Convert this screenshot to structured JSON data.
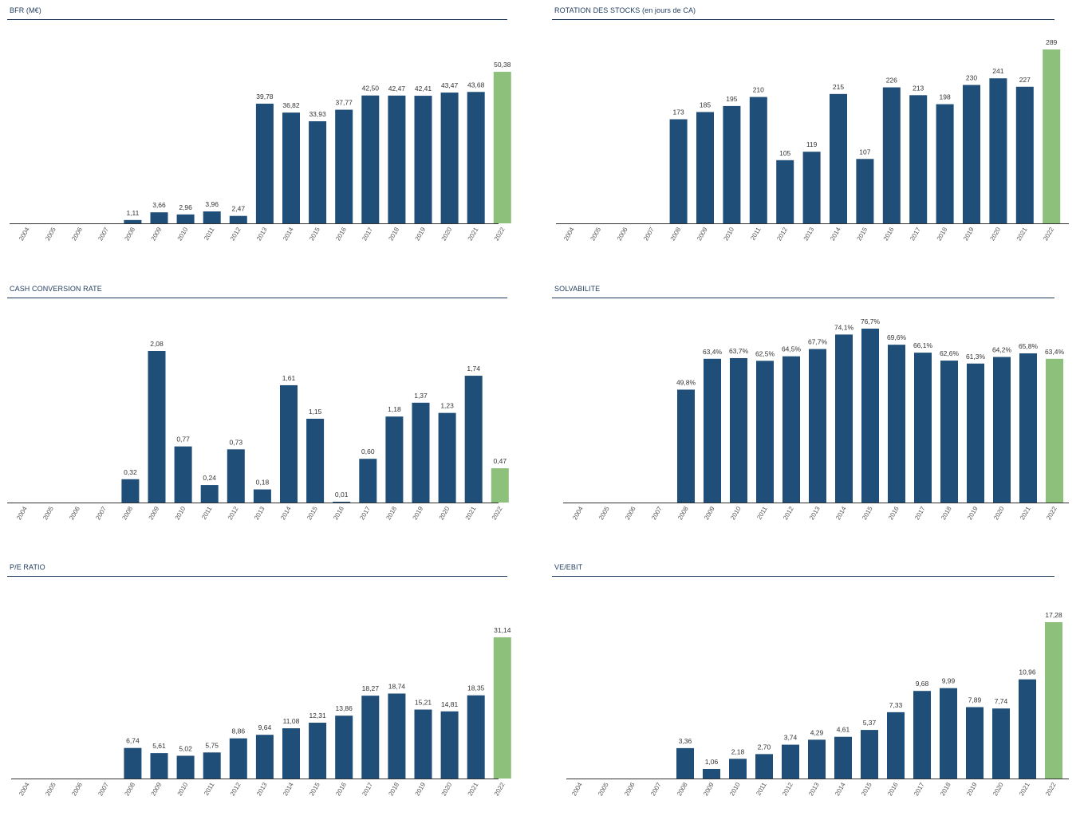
{
  "colors": {
    "bar": "#1f4e79",
    "highlight": "#8dc07a",
    "title": "#1f3a5c",
    "axis": "#333333"
  },
  "chart_data": [
    {
      "type": "bar",
      "title": "BFR (M€)",
      "categories": [
        "2004",
        "2005",
        "2006",
        "2007",
        "2008",
        "2009",
        "2010",
        "2011",
        "2012",
        "2013",
        "2014",
        "2015",
        "2016",
        "2017",
        "2018",
        "2019",
        "2020",
        "2021",
        "2022"
      ],
      "values": [
        null,
        null,
        null,
        null,
        1.11,
        3.66,
        2.96,
        3.96,
        2.47,
        39.78,
        36.82,
        33.93,
        37.77,
        42.5,
        42.47,
        42.41,
        43.47,
        43.68,
        50.38
      ],
      "labels": [
        "",
        "",
        "",
        "",
        "1,11",
        "3,66",
        "2,96",
        "3,96",
        "2,47",
        "39,78",
        "36,82",
        "33,93",
        "37,77",
        "42,50",
        "42,47",
        "42,41",
        "43,47",
        "43,68",
        "50,38"
      ],
      "highlight_index": 18,
      "ylim": [
        0,
        50.38
      ]
    },
    {
      "type": "bar",
      "title": "ROTATION DES STOCKS (en jours de CA)",
      "categories": [
        "2004",
        "2005",
        "2006",
        "2007",
        "2008",
        "2009",
        "2010",
        "2011",
        "2012",
        "2013",
        "2014",
        "2015",
        "2016",
        "2017",
        "2018",
        "2019",
        "2020",
        "2021",
        "2022"
      ],
      "values": [
        null,
        null,
        null,
        null,
        173,
        185,
        195,
        210,
        105,
        119,
        215,
        107,
        226,
        213,
        198,
        230,
        241,
        227,
        289
      ],
      "labels": [
        "",
        "",
        "",
        "",
        "173",
        "185",
        "195",
        "210",
        "105",
        "119",
        "215",
        "107",
        "226",
        "213",
        "198",
        "230",
        "241",
        "227",
        "289"
      ],
      "highlight_index": 18,
      "ylim": [
        0,
        289
      ]
    },
    {
      "type": "bar",
      "title": "CASH CONVERSION RATE",
      "categories": [
        "2004",
        "2005",
        "2006",
        "2007",
        "2008",
        "2009",
        "2010",
        "2011",
        "2012",
        "2013",
        "2014",
        "2015",
        "2016",
        "2017",
        "2018",
        "2019",
        "2020",
        "2021",
        "2022"
      ],
      "values": [
        null,
        null,
        null,
        null,
        0.32,
        2.08,
        0.77,
        0.24,
        0.73,
        0.18,
        1.61,
        1.15,
        0.01,
        0.6,
        1.18,
        1.37,
        1.23,
        1.74,
        0.47
      ],
      "labels": [
        "",
        "",
        "",
        "",
        "0,32",
        "2,08",
        "0,77",
        "0,24",
        "0,73",
        "0,18",
        "1,61",
        "1,15",
        "0,01",
        "0,60",
        "1,18",
        "1,37",
        "1,23",
        "1,74",
        "0,47"
      ],
      "highlight_index": 18,
      "ylim": [
        0,
        2.08
      ]
    },
    {
      "type": "bar",
      "title": "SOLVABILITE",
      "categories": [
        "2004",
        "2005",
        "2006",
        "2007",
        "2008",
        "2009",
        "2010",
        "2011",
        "2012",
        "2013",
        "2014",
        "2015",
        "2016",
        "2017",
        "2018",
        "2019",
        "2020",
        "2021",
        "2022"
      ],
      "values": [
        null,
        null,
        null,
        null,
        49.8,
        63.4,
        63.7,
        62.5,
        64.5,
        67.7,
        74.1,
        76.7,
        69.6,
        66.1,
        62.6,
        61.3,
        64.2,
        65.8,
        63.4
      ],
      "labels": [
        "",
        "",
        "",
        "",
        "49,8%",
        "63,4%",
        "63,7%",
        "62,5%",
        "64,5%",
        "67,7%",
        "74,1%",
        "76,7%",
        "69,6%",
        "66,1%",
        "62,6%",
        "61,3%",
        "64,2%",
        "65,8%",
        "63,4%"
      ],
      "highlight_index": 18,
      "ylim": [
        0,
        76.7
      ]
    },
    {
      "type": "bar",
      "title": "P/E RATIO",
      "categories": [
        "2004",
        "2005",
        "2006",
        "2007",
        "2008",
        "2009",
        "2010",
        "2011",
        "2012",
        "2013",
        "2014",
        "2015",
        "2016",
        "2017",
        "2018",
        "2019",
        "2020",
        "2021",
        "2022"
      ],
      "values": [
        null,
        null,
        null,
        null,
        6.74,
        5.61,
        5.02,
        5.75,
        8.86,
        9.64,
        11.08,
        12.31,
        13.86,
        18.27,
        18.74,
        15.21,
        14.81,
        18.35,
        31.14
      ],
      "labels": [
        "",
        "",
        "",
        "",
        "6,74",
        "5,61",
        "5,02",
        "5,75",
        "8,86",
        "9,64",
        "11,08",
        "12,31",
        "13,86",
        "18,27",
        "18,74",
        "15,21",
        "14,81",
        "18,35",
        "31,14"
      ],
      "highlight_index": 18,
      "ylim": [
        0,
        31.14
      ]
    },
    {
      "type": "bar",
      "title": "VE/EBIT",
      "categories": [
        "2004",
        "2005",
        "2006",
        "2007",
        "2008",
        "2009",
        "2010",
        "2011",
        "2012",
        "2013",
        "2014",
        "2015",
        "2016",
        "2017",
        "2018",
        "2019",
        "2020",
        "2021",
        "2022"
      ],
      "values": [
        null,
        null,
        null,
        null,
        3.36,
        1.06,
        2.18,
        2.7,
        3.74,
        4.29,
        4.61,
        5.37,
        7.33,
        9.68,
        9.99,
        7.89,
        7.74,
        10.96,
        17.28
      ],
      "labels": [
        "",
        "",
        "",
        "",
        "3,36",
        "1,06",
        "2,18",
        "2,70",
        "3,74",
        "4,29",
        "4,61",
        "5,37",
        "7,33",
        "9,68",
        "9,99",
        "7,89",
        "7,74",
        "10,96",
        "17,28"
      ],
      "highlight_index": 18,
      "ylim": [
        0,
        17.28
      ]
    }
  ]
}
